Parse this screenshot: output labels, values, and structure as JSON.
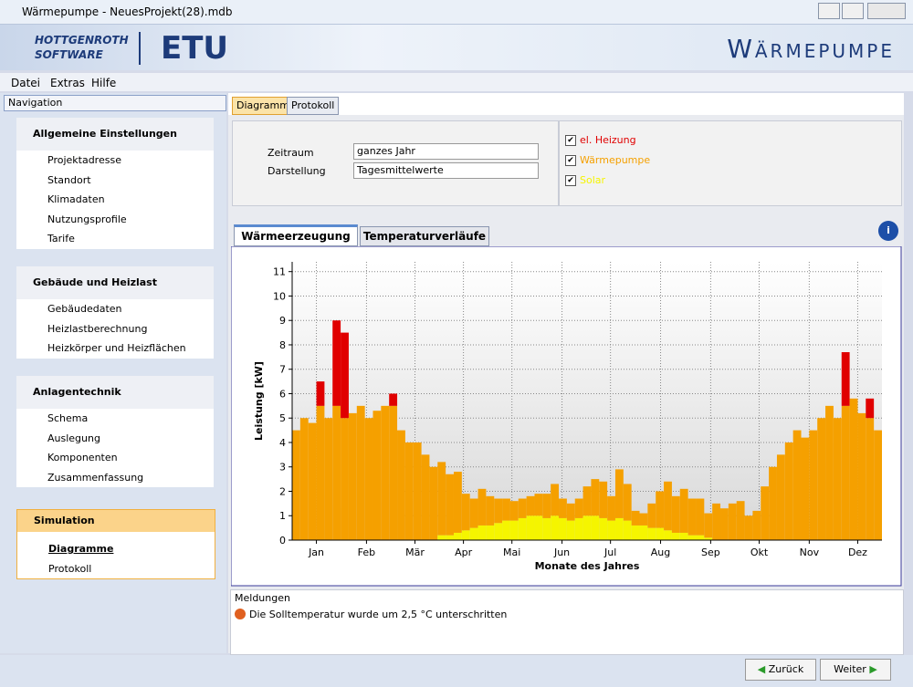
{
  "window": {
    "title": "Wärmepumpe - NeuesProjekt(28).mdb"
  },
  "banner": {
    "company_line1": "HOTTGENROTH",
    "company_line2": "SOFTWARE",
    "product": "ETU",
    "module": "Wärmepumpe"
  },
  "menu": [
    "Datei",
    "Extras",
    "Hilfe"
  ],
  "navigation": {
    "title": "Navigation",
    "sections": [
      {
        "title": "Allgemeine Einstellungen",
        "items": [
          "Projektadresse",
          "Standort",
          "Klimadaten",
          "Nutzungsprofile",
          "Tarife"
        ]
      },
      {
        "title": "Gebäude und Heizlast",
        "items": [
          "Gebäudedaten",
          "Heizlastberechnung",
          "Heizkörper und Heizflächen"
        ]
      },
      {
        "title": "Anlagentechnik",
        "items": [
          "Schema",
          "Auslegung",
          "Komponenten",
          "Zusammenfassung"
        ]
      },
      {
        "title": "Simulation",
        "items": [
          "Diagramme",
          "Protokoll"
        ]
      }
    ]
  },
  "tabs": [
    "Diagramme",
    "Protokoll"
  ],
  "settings": [
    {
      "label": "Zeitraum",
      "value": "ganzes Jahr"
    },
    {
      "label": "Darstellung",
      "value": "Tagesmittelwerte"
    }
  ],
  "chart_tabs": [
    "Wärmeerzeugung",
    "Temperaturverläufe"
  ],
  "chart_data": {
    "type": "bar",
    "stacked": true,
    "xlabel": "Monate des Jahres",
    "ylabel": "Leistung [kW]",
    "grid": true,
    "x": [
      0,
      5,
      10,
      15,
      20,
      25,
      30,
      35,
      40,
      45,
      50,
      55,
      60,
      65,
      70,
      75,
      80,
      85,
      90,
      95,
      100,
      105,
      110,
      115,
      120,
      125,
      130,
      135,
      140,
      145,
      150,
      155,
      160,
      165,
      170,
      175,
      180,
      185,
      190,
      195,
      200,
      205,
      210,
      215,
      220,
      225,
      230,
      235,
      240,
      245,
      250,
      255,
      260,
      265,
      270,
      275,
      280,
      285,
      290,
      295,
      300,
      305,
      310,
      315,
      320,
      325,
      330,
      335,
      340,
      345,
      350,
      355,
      360
    ],
    "xlim": [
      0,
      365
    ],
    "xticks": [
      {
        "value": 15,
        "label": "Jan"
      },
      {
        "value": 46,
        "label": "Feb"
      },
      {
        "value": 76,
        "label": "Mär"
      },
      {
        "value": 106,
        "label": "Apr"
      },
      {
        "value": 136,
        "label": "Mai"
      },
      {
        "value": 167,
        "label": "Jun"
      },
      {
        "value": 197,
        "label": "Jul"
      },
      {
        "value": 228,
        "label": "Aug"
      },
      {
        "value": 259,
        "label": "Sep"
      },
      {
        "value": 289,
        "label": "Okt"
      },
      {
        "value": 320,
        "label": "Nov"
      },
      {
        "value": 350,
        "label": "Dez"
      }
    ],
    "ylim": [
      0,
      11.4
    ],
    "yticks": [
      0,
      1,
      2,
      3,
      4,
      5,
      6,
      7,
      8,
      9,
      10,
      11
    ],
    "series": [
      {
        "name": "Solar",
        "color": "#f5f500",
        "values": [
          0,
          0,
          0,
          0,
          0,
          0,
          0,
          0,
          0,
          0,
          0,
          0,
          0,
          0,
          0,
          0,
          0,
          0,
          0.2,
          0.2,
          0.3,
          0.4,
          0.5,
          0.6,
          0.6,
          0.7,
          0.8,
          0.8,
          0.9,
          1,
          1,
          0.9,
          1,
          0.9,
          0.8,
          0.9,
          1,
          1,
          0.9,
          0.8,
          0.9,
          0.8,
          0.6,
          0.6,
          0.5,
          0.5,
          0.4,
          0.3,
          0.3,
          0.2,
          0.2,
          0.1,
          0,
          0,
          0,
          0,
          0,
          0,
          0,
          0,
          0,
          0,
          0,
          0,
          0,
          0,
          0,
          0,
          0,
          0,
          0,
          0,
          0
        ]
      },
      {
        "name": "Wärmepumpe",
        "color": "#f5a000",
        "values": [
          4.5,
          5,
          4.8,
          5.5,
          5,
          5.5,
          5,
          5.2,
          5.5,
          5,
          5.3,
          5.5,
          5.5,
          4.5,
          4,
          4,
          3.5,
          3,
          3,
          2.5,
          2.5,
          1.5,
          1.2,
          1.5,
          1.2,
          1,
          0.9,
          0.8,
          0.8,
          0.8,
          0.9,
          1,
          1.3,
          0.8,
          0.7,
          0.8,
          1.2,
          1.5,
          1.5,
          1,
          2,
          1.5,
          0.6,
          0.5,
          1,
          1.5,
          2,
          1.5,
          1.8,
          1.5,
          1.5,
          1,
          1.5,
          1.3,
          1.5,
          1.6,
          1,
          1.2,
          2.2,
          3,
          3.5,
          4,
          4.5,
          4.2,
          4.5,
          5,
          5.5,
          5,
          5.5,
          5.8,
          5.2,
          5,
          4.5
        ]
      },
      {
        "name": "el. Heizung",
        "color": "#e00000",
        "values": [
          0,
          0,
          0,
          1,
          0,
          3.5,
          3.5,
          0,
          0,
          0,
          0,
          0,
          0.5,
          0,
          0,
          0,
          0,
          0,
          0,
          0,
          0,
          0,
          0,
          0,
          0,
          0,
          0,
          0,
          0,
          0,
          0,
          0,
          0,
          0,
          0,
          0,
          0,
          0,
          0,
          0,
          0,
          0,
          0,
          0,
          0,
          0,
          0,
          0,
          0,
          0,
          0,
          0,
          0,
          0,
          0,
          0,
          0,
          0,
          0,
          0,
          0,
          0,
          0,
          0,
          0,
          0,
          0,
          0,
          2.2,
          0,
          0,
          0.8,
          0
        ]
      }
    ]
  },
  "messages": {
    "title": "Meldungen",
    "items": [
      "Die Solltemperatur wurde um 2,5 °C unterschritten"
    ]
  },
  "buttons": [
    "Zurück",
    "Weiter"
  ]
}
